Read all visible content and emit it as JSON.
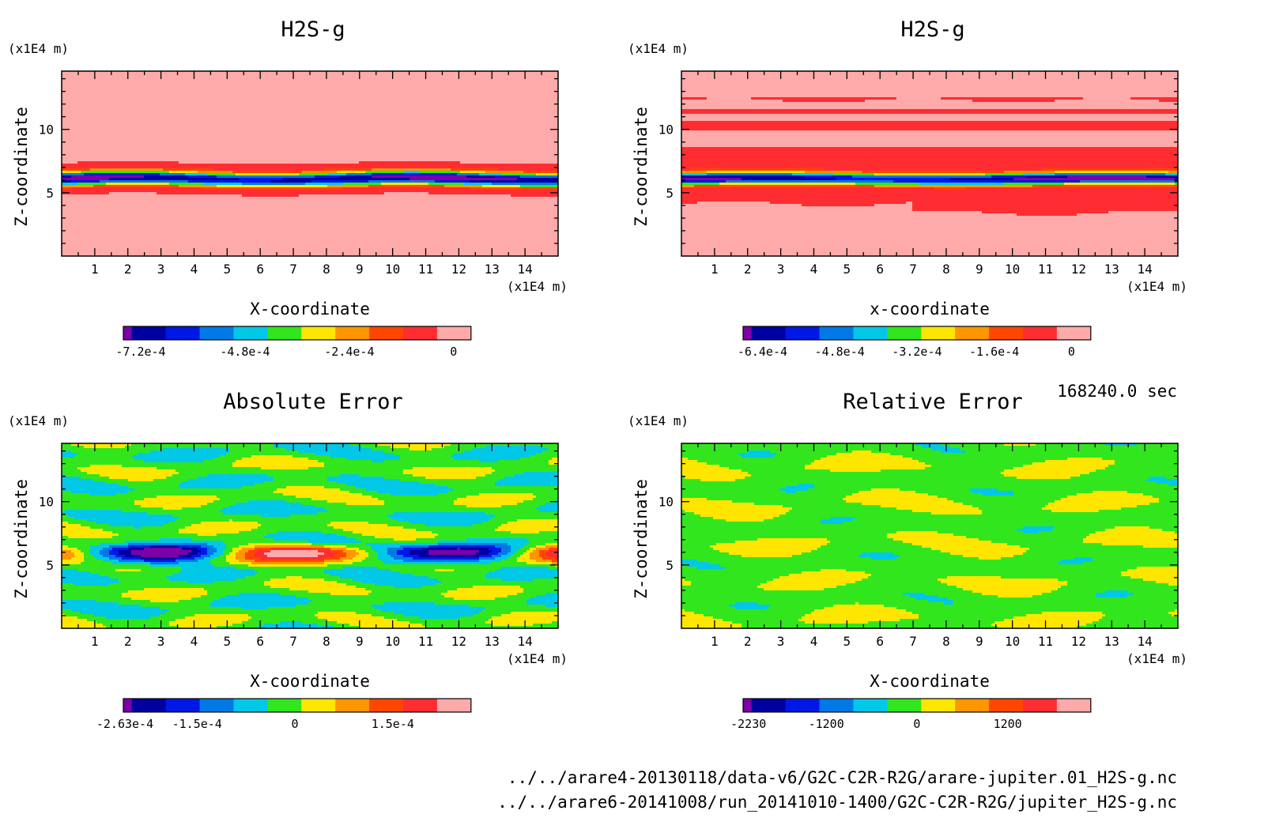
{
  "time_label": "168240.0 sec",
  "footer": {
    "file_1": "../../arare4-20130118/data-v6/G2C-C2R-R2G/arare-jupiter.01_H2S-g.nc",
    "file_2": "../../arare6-20141008/run_20141010-1400/G2C-C2R-R2G/jupiter_H2S-g.nc"
  },
  "chart_data": [
    {
      "type": "heatmap",
      "title": "H2S-g",
      "xlabel": "X-coordinate",
      "ylabel": "Z-coordinate",
      "x_unit": "(x1E4 m)",
      "y_unit": "(x1E4 m)",
      "xlim": [
        0,
        15
      ],
      "ylim": [
        0,
        14.6
      ],
      "x_ticks": [
        1,
        2,
        3,
        4,
        5,
        6,
        7,
        8,
        9,
        10,
        11,
        12,
        13,
        14
      ],
      "y_ticks": [
        5,
        10
      ],
      "colorbar": {
        "colors": [
          "#7b00a8",
          "#0000a0",
          "#0018e6",
          "#0078e6",
          "#00c8e6",
          "#32e61e",
          "#ffe600",
          "#ff9600",
          "#ff4600",
          "#ff2d32",
          "#ffaaaa"
        ],
        "labels": [
          {
            "value": -0.00072,
            "text": "-7.2e-4"
          },
          {
            "value": -0.00048,
            "text": "-4.8e-4"
          },
          {
            "value": -0.00024,
            "text": "-2.4e-4"
          },
          {
            "value": 0,
            "text": "0"
          }
        ],
        "min": -0.00076,
        "max": 4e-05
      },
      "field": "h2s_a"
    },
    {
      "type": "heatmap",
      "title": "H2S-g",
      "xlabel": "x-coordinate",
      "ylabel": "Z-coordinate",
      "x_unit": "(x1E4 m)",
      "y_unit": "(x1E4 m)",
      "xlim": [
        0,
        15
      ],
      "ylim": [
        0,
        14.6
      ],
      "x_ticks": [
        1,
        2,
        3,
        4,
        5,
        6,
        7,
        8,
        9,
        10,
        11,
        12,
        13,
        14
      ],
      "y_ticks": [
        5,
        10
      ],
      "colorbar": {
        "colors": [
          "#7b00a8",
          "#0000a0",
          "#0018e6",
          "#0078e6",
          "#00c8e6",
          "#32e61e",
          "#ffe600",
          "#ff9600",
          "#ff4600",
          "#ff2d32",
          "#ffaaaa"
        ],
        "labels": [
          {
            "value": -0.00064,
            "text": "-6.4e-4"
          },
          {
            "value": -0.00048,
            "text": "-4.8e-4"
          },
          {
            "value": -0.00032,
            "text": "-3.2e-4"
          },
          {
            "value": -0.00016,
            "text": "-1.6e-4"
          },
          {
            "value": 0,
            "text": "0"
          }
        ],
        "min": -0.00068,
        "max": 4e-05
      },
      "field": "h2s_b"
    },
    {
      "type": "heatmap",
      "title": "Absolute Error",
      "xlabel": "X-coordinate",
      "ylabel": "Z-coordinate",
      "x_unit": "(x1E4 m)",
      "y_unit": "(x1E4 m)",
      "xlim": [
        0,
        15
      ],
      "ylim": [
        0,
        14.6
      ],
      "x_ticks": [
        1,
        2,
        3,
        4,
        5,
        6,
        7,
        8,
        9,
        10,
        11,
        12,
        13,
        14
      ],
      "y_ticks": [
        5,
        10
      ],
      "colorbar": {
        "colors": [
          "#7b00a8",
          "#0000a0",
          "#0018e6",
          "#0078e6",
          "#00c8e6",
          "#32e61e",
          "#ffe600",
          "#ff9600",
          "#ff4600",
          "#ff2d32",
          "#ffaaaa"
        ],
        "labels": [
          {
            "value": -0.000263,
            "text": "-2.63e-4"
          },
          {
            "value": -0.00015,
            "text": "-1.5e-4"
          },
          {
            "value": 0,
            "text": "0"
          },
          {
            "value": 0.00015,
            "text": "1.5e-4"
          }
        ],
        "min": -0.000263,
        "max": 0.00027
      },
      "field": "abs_err"
    },
    {
      "type": "heatmap",
      "title": "Relative Error",
      "xlabel": "X-coordinate",
      "ylabel": "Z-coordinate",
      "x_unit": "(x1E4 m)",
      "y_unit": "(x1E4 m)",
      "xlim": [
        0,
        15
      ],
      "ylim": [
        0,
        14.6
      ],
      "x_ticks": [
        1,
        2,
        3,
        4,
        5,
        6,
        7,
        8,
        9,
        10,
        11,
        12,
        13,
        14
      ],
      "y_ticks": [
        5,
        10
      ],
      "colorbar": {
        "colors": [
          "#7b00a8",
          "#0000a0",
          "#0018e6",
          "#0078e6",
          "#00c8e6",
          "#32e61e",
          "#ffe600",
          "#ff9600",
          "#ff4600",
          "#ff2d32",
          "#ffaaaa"
        ],
        "labels": [
          {
            "value": -2230,
            "text": "-2230"
          },
          {
            "value": -1200,
            "text": "-1200"
          },
          {
            "value": 0,
            "text": "0"
          },
          {
            "value": 1200,
            "text": "1200"
          }
        ],
        "min": -2300,
        "max": 2300
      },
      "field": "rel_err"
    }
  ]
}
